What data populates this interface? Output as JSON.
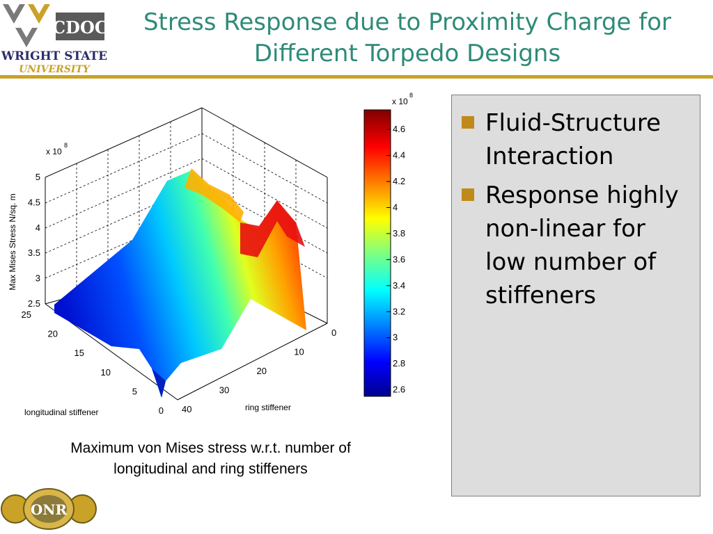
{
  "header": {
    "logo_text": "CDOC",
    "logo_univ_1": "WRIGHT STATE",
    "logo_univ_2": "UNIVERSITY",
    "title_line1": "Stress Response due to Proximity Charge for",
    "title_line2": "Different Torpedo Designs",
    "rule_color": "#c9a227",
    "title_color": "#2e8b78"
  },
  "chart_data": {
    "type": "surface",
    "zlabel": "Max Mises Stress N/sq. m",
    "xlabel": "ring stiffener",
    "ylabel": "longitudinal stiffener",
    "z_multiplier": "x 10",
    "z_exponent": "8",
    "x_ticks": [
      "0",
      "10",
      "20",
      "30",
      "40"
    ],
    "y_ticks": [
      "0",
      "5",
      "10",
      "15",
      "20",
      "25"
    ],
    "z_ticks": [
      "2.5",
      "3",
      "3.5",
      "4",
      "4.5",
      "5"
    ],
    "zlim": [
      2.5,
      5
    ],
    "xlim": [
      0,
      40
    ],
    "ylim": [
      0,
      25
    ],
    "grid": true,
    "colorbar": {
      "multiplier": "x 10",
      "exponent": "8",
      "ticks": [
        "2.6",
        "2.8",
        "3",
        "3.2",
        "3.4",
        "3.6",
        "3.8",
        "4",
        "4.2",
        "4.4",
        "4.6"
      ],
      "range": [
        2.55,
        4.75
      ]
    }
  },
  "caption": {
    "line1": "Maximum von Mises stress w.r.t. number of",
    "line2": "longitudinal and ring stiffeners"
  },
  "panel": {
    "bullets": [
      "Fluid-Structure Interaction",
      "Response highly non-linear for low number of stiffeners"
    ],
    "bullet_color": "#c08a1a"
  },
  "footer": {
    "logo_text": "ONR"
  }
}
